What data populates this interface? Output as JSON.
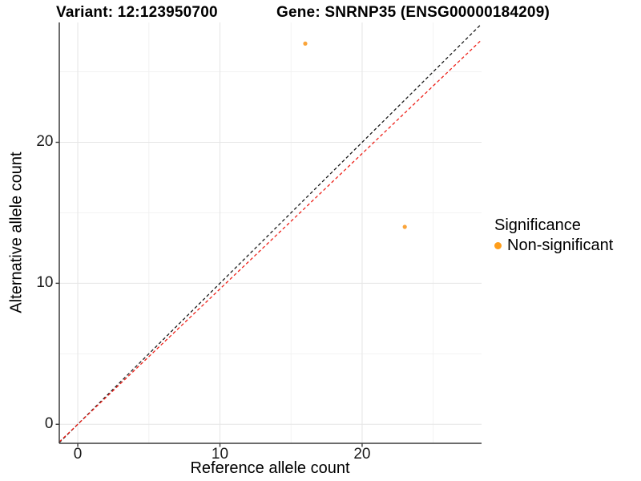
{
  "titles": {
    "variant": "Variant: 12:123950700",
    "gene": "Gene: SNRNP35 (ENSG00000184209)"
  },
  "chart_data": {
    "type": "scatter",
    "title_left": "Variant: 12:123950700",
    "title_right": "Gene: SNRNP35 (ENSG00000184209)",
    "xlabel": "Reference allele count",
    "ylabel": "Alternative allele count",
    "xlim": [
      -1.3,
      28.4
    ],
    "ylim": [
      -1.35,
      28.5
    ],
    "x_major_ticks": [
      0,
      10,
      20
    ],
    "x_minor_ticks": [
      5,
      15,
      25
    ],
    "y_major_ticks": [
      0,
      10,
      20
    ],
    "y_minor_ticks": [
      5,
      15,
      25
    ],
    "grid": true,
    "points": [
      {
        "x": 16,
        "y": 27,
        "series": "Non-significant"
      },
      {
        "x": 23,
        "y": 14,
        "series": "Non-significant"
      }
    ],
    "point_color": "#FAA43A",
    "point_radius": 2.6,
    "reference_lines": [
      {
        "name": "identity-line",
        "slope": 1.0,
        "intercept": 0,
        "color": "#1a1a1a",
        "style": "dashed"
      },
      {
        "name": "expected-ratio-line",
        "slope": 0.96,
        "intercept": 0,
        "color": "#EE2119",
        "style": "dashed"
      }
    ],
    "legend_position": "right",
    "legend": {
      "title": "Significance",
      "items": [
        {
          "label": "Non-significant",
          "color": "#FF9E1B"
        }
      ]
    },
    "colors": {
      "grid_major": "#e6e6e6",
      "grid_minor": "#f2f2f2",
      "axis_line": "#3c3c3c",
      "background": "#ffffff"
    }
  }
}
